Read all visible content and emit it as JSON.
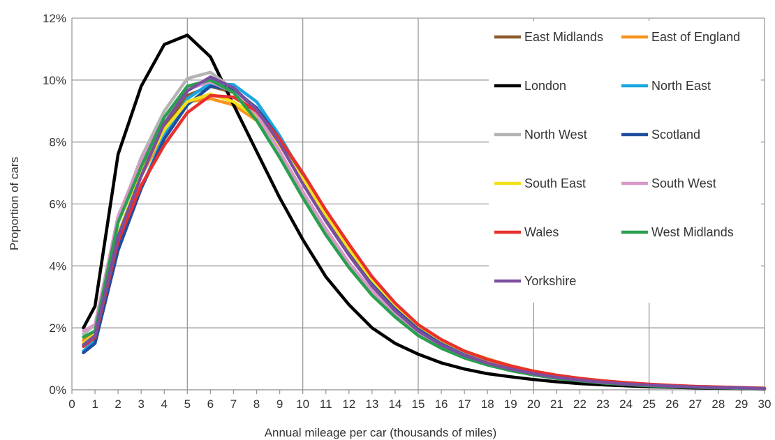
{
  "chart_data": {
    "type": "line",
    "title": "",
    "xlabel": "Annual mileage per car  (thousands of miles)",
    "ylabel": "Proportion of cars",
    "xlim": [
      0,
      30
    ],
    "ylim": [
      0,
      12
    ],
    "x_ticks": [
      "0",
      "1",
      "2",
      "3",
      "4",
      "5",
      "6",
      "7",
      "8",
      "9",
      "10",
      "11",
      "12",
      "13",
      "14",
      "15",
      "16",
      "17",
      "18",
      "19",
      "20",
      "21",
      "22",
      "23",
      "24",
      "25",
      "26",
      "27",
      "28",
      "29",
      "30"
    ],
    "y_ticks": [
      "0%",
      "2%",
      "4%",
      "6%",
      "8%",
      "10%",
      "12%"
    ],
    "grid": true,
    "legend_position": "top-right",
    "x": [
      0.5,
      1,
      2,
      3,
      4,
      5,
      6,
      7,
      8,
      9,
      10,
      11,
      12,
      13,
      14,
      15,
      16,
      17,
      18,
      19,
      20,
      21,
      22,
      23,
      24,
      25,
      26,
      27,
      28,
      29,
      30
    ],
    "series": [
      {
        "name": "East Midlands",
        "color": "#8B5A2B",
        "values": [
          1.5,
          1.8,
          5.0,
          7.0,
          8.5,
          9.5,
          9.8,
          9.6,
          9.0,
          8.0,
          6.8,
          5.6,
          4.5,
          3.5,
          2.7,
          2.0,
          1.55,
          1.2,
          0.95,
          0.75,
          0.58,
          0.45,
          0.35,
          0.28,
          0.22,
          0.17,
          0.13,
          0.1,
          0.08,
          0.06,
          0.05
        ]
      },
      {
        "name": "East of England",
        "color": "#F7941D",
        "values": [
          1.6,
          1.9,
          5.0,
          6.9,
          8.3,
          9.3,
          9.4,
          9.2,
          8.7,
          7.9,
          6.8,
          5.6,
          4.5,
          3.5,
          2.7,
          2.05,
          1.6,
          1.25,
          1.0,
          0.78,
          0.6,
          0.47,
          0.37,
          0.29,
          0.23,
          0.18,
          0.14,
          0.11,
          0.09,
          0.07,
          0.05
        ]
      },
      {
        "name": "London",
        "color": "#000000",
        "values": [
          2.0,
          2.7,
          7.6,
          9.8,
          11.15,
          11.45,
          10.75,
          9.2,
          7.7,
          6.2,
          4.85,
          3.65,
          2.75,
          2.0,
          1.5,
          1.15,
          0.87,
          0.67,
          0.52,
          0.42,
          0.33,
          0.26,
          0.2,
          0.16,
          0.13,
          0.1,
          0.08,
          0.06,
          0.05,
          0.04,
          0.03
        ]
      },
      {
        "name": "North East",
        "color": "#1AA7E1",
        "values": [
          1.25,
          1.6,
          4.6,
          6.5,
          8.2,
          9.4,
          9.9,
          9.85,
          9.3,
          8.2,
          6.9,
          5.6,
          4.4,
          3.4,
          2.6,
          1.95,
          1.48,
          1.13,
          0.88,
          0.68,
          0.52,
          0.4,
          0.31,
          0.24,
          0.19,
          0.15,
          0.12,
          0.09,
          0.07,
          0.06,
          0.04
        ]
      },
      {
        "name": "North West",
        "color": "#B4B4B4",
        "values": [
          1.8,
          2.1,
          5.5,
          7.5,
          9.0,
          10.05,
          10.25,
          9.7,
          8.7,
          7.5,
          6.3,
          5.1,
          4.0,
          3.1,
          2.4,
          1.8,
          1.38,
          1.06,
          0.82,
          0.64,
          0.5,
          0.39,
          0.3,
          0.24,
          0.19,
          0.15,
          0.11,
          0.09,
          0.07,
          0.05,
          0.04
        ]
      },
      {
        "name": "Scotland",
        "color": "#1F4E9E",
        "values": [
          1.2,
          1.5,
          4.5,
          6.5,
          8.1,
          9.2,
          9.8,
          9.7,
          9.1,
          8.1,
          6.8,
          5.6,
          4.4,
          3.4,
          2.6,
          1.95,
          1.47,
          1.12,
          0.87,
          0.67,
          0.52,
          0.4,
          0.31,
          0.24,
          0.19,
          0.15,
          0.12,
          0.09,
          0.07,
          0.06,
          0.04
        ]
      },
      {
        "name": "South East",
        "color": "#F4E11B",
        "values": [
          1.5,
          1.8,
          5.0,
          7.0,
          8.4,
          9.3,
          9.55,
          9.3,
          8.8,
          7.9,
          6.8,
          5.65,
          4.55,
          3.55,
          2.75,
          2.08,
          1.6,
          1.24,
          0.97,
          0.76,
          0.59,
          0.46,
          0.36,
          0.28,
          0.22,
          0.17,
          0.13,
          0.1,
          0.08,
          0.06,
          0.05
        ]
      },
      {
        "name": "South West",
        "color": "#D898C8",
        "values": [
          1.9,
          2.1,
          5.6,
          7.4,
          8.8,
          9.7,
          9.95,
          9.6,
          8.9,
          7.7,
          6.4,
          5.2,
          4.1,
          3.2,
          2.45,
          1.85,
          1.42,
          1.1,
          0.85,
          0.66,
          0.51,
          0.4,
          0.31,
          0.24,
          0.19,
          0.15,
          0.11,
          0.09,
          0.07,
          0.05,
          0.04
        ]
      },
      {
        "name": "Wales",
        "color": "#E8302E",
        "values": [
          1.4,
          1.7,
          4.8,
          6.6,
          7.9,
          8.95,
          9.5,
          9.45,
          9.0,
          8.1,
          7.0,
          5.8,
          4.7,
          3.65,
          2.8,
          2.1,
          1.62,
          1.25,
          0.98,
          0.77,
          0.6,
          0.47,
          0.37,
          0.29,
          0.23,
          0.18,
          0.14,
          0.11,
          0.09,
          0.07,
          0.05
        ]
      },
      {
        "name": "West Midlands",
        "color": "#2AA04F",
        "values": [
          1.7,
          1.9,
          5.4,
          7.2,
          8.8,
          9.8,
          10.0,
          9.6,
          8.7,
          7.5,
          6.2,
          5.0,
          3.95,
          3.05,
          2.35,
          1.75,
          1.34,
          1.03,
          0.8,
          0.62,
          0.48,
          0.37,
          0.29,
          0.22,
          0.17,
          0.13,
          0.1,
          0.08,
          0.06,
          0.05,
          0.04
        ]
      },
      {
        "name": "Yorkshire",
        "color": "#7B4FA0",
        "values": [
          1.45,
          1.75,
          4.95,
          6.9,
          8.6,
          9.65,
          10.1,
          9.75,
          9.05,
          7.95,
          6.65,
          5.45,
          4.35,
          3.35,
          2.55,
          1.9,
          1.45,
          1.11,
          0.86,
          0.67,
          0.52,
          0.4,
          0.31,
          0.24,
          0.19,
          0.15,
          0.12,
          0.09,
          0.07,
          0.06,
          0.04
        ]
      }
    ]
  }
}
